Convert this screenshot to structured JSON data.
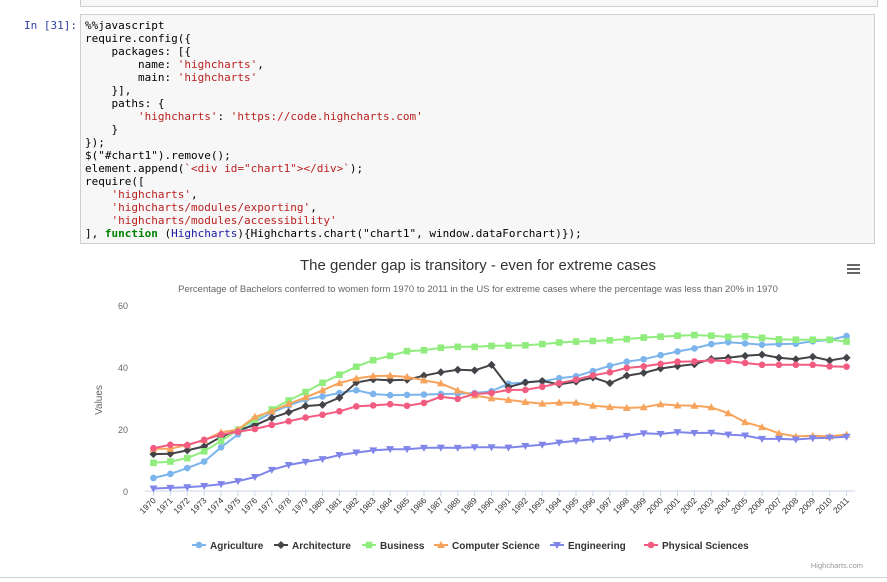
{
  "cell": {
    "prompt": "In [31]:",
    "code_lines": [
      "%%javascript",
      "require.config({",
      "    packages: [{",
      "        name: 'highcharts',",
      "        main: 'highcharts'",
      "    }],",
      "    paths: {",
      "        'highcharts': 'https://code.highcharts.com'",
      "    }",
      "});",
      "$(\"#chart1\").remove();",
      "element.append(`<div id=\"chart1\"></div>`);",
      "require([",
      "    'highcharts',",
      "    'highcharts/modules/exporting',",
      "    'highcharts/modules/accessibility'",
      "], function (Highcharts){Highcharts.chart(\"chart1\", window.dataForchart)});"
    ]
  },
  "chart_data": {
    "type": "line",
    "title": "The gender gap is transitory - even for extreme cases",
    "subtitle": "Percentage of Bachelors conferred to women form 1970 to 2011 in the US for extreme cases where the percentage was less than 20% in 1970",
    "xlabel": "",
    "ylabel": "Values",
    "ylim": [
      0,
      60
    ],
    "yticks": [
      0,
      20,
      40,
      60
    ],
    "grid": false,
    "legend_position": "bottom",
    "credits": "Highcharts.com",
    "x": [
      1970,
      1971,
      1972,
      1973,
      1974,
      1975,
      1976,
      1977,
      1978,
      1979,
      1980,
      1981,
      1982,
      1983,
      1984,
      1985,
      1986,
      1987,
      1988,
      1989,
      1990,
      1991,
      1992,
      1993,
      1994,
      1995,
      1996,
      1997,
      1998,
      1999,
      2000,
      2001,
      2002,
      2003,
      2004,
      2005,
      2006,
      2007,
      2008,
      2009,
      2010,
      2011
    ],
    "series": [
      {
        "name": "Agriculture",
        "color": "#7cb5ec",
        "marker": "circle",
        "values": [
          4.2,
          5.5,
          7.4,
          9.5,
          14.1,
          18.3,
          22.3,
          25.3,
          27.6,
          29.5,
          30.5,
          31.6,
          32.5,
          31.3,
          30.9,
          31.0,
          31.1,
          31.3,
          31.4,
          31.6,
          32.2,
          34.6,
          35.1,
          35.4,
          36.4,
          37.0,
          38.7,
          40.4,
          41.7,
          42.5,
          43.8,
          45.0,
          46.0,
          47.4,
          48.0,
          47.6,
          47.2,
          47.4,
          47.5,
          48.3,
          48.7,
          50.0
        ]
      },
      {
        "name": "Architecture",
        "color": "#434348",
        "marker": "diamond",
        "values": [
          11.9,
          12.0,
          13.1,
          14.4,
          17.5,
          19.7,
          21.2,
          23.6,
          25.4,
          27.4,
          27.8,
          30.1,
          35.0,
          36.0,
          35.7,
          35.9,
          37.2,
          38.3,
          39.1,
          38.9,
          40.7,
          33.5,
          35.0,
          35.5,
          34.4,
          35.3,
          36.6,
          34.8,
          37.2,
          38.1,
          39.5,
          40.3,
          40.9,
          42.6,
          43.0,
          43.6,
          44.0,
          43.0,
          42.5,
          43.3,
          42.1,
          43.0
        ]
      },
      {
        "name": "Business",
        "color": "#90ed7d",
        "marker": "square",
        "values": [
          9.1,
          9.5,
          10.6,
          12.8,
          16.2,
          19.7,
          23.0,
          26.3,
          29.2,
          31.9,
          34.9,
          37.5,
          40.1,
          42.2,
          43.6,
          45.1,
          45.4,
          46.2,
          46.5,
          46.5,
          46.8,
          46.9,
          47.0,
          47.4,
          47.9,
          48.2,
          48.4,
          48.6,
          49.0,
          49.5,
          49.8,
          50.1,
          50.3,
          50.1,
          49.7,
          49.9,
          49.4,
          48.9,
          48.8,
          48.8,
          48.8,
          48.2
        ]
      },
      {
        "name": "Computer Science",
        "color": "#f7a35c",
        "marker": "triangle",
        "values": [
          13.6,
          13.6,
          14.9,
          16.4,
          18.9,
          19.8,
          23.9,
          25.7,
          28.1,
          30.2,
          32.5,
          34.8,
          36.3,
          37.1,
          37.2,
          36.8,
          35.7,
          34.7,
          32.4,
          30.8,
          29.9,
          29.4,
          28.7,
          28.2,
          28.5,
          28.5,
          27.5,
          27.1,
          26.8,
          27.0,
          28.0,
          27.6,
          27.5,
          27.0,
          25.1,
          22.2,
          20.6,
          18.6,
          17.6,
          17.8,
          17.6,
          18.2
        ]
      },
      {
        "name": "Engineering",
        "color": "#8085e9",
        "marker": "triangle-down",
        "values": [
          0.8,
          1.0,
          1.2,
          1.6,
          2.2,
          3.2,
          4.5,
          6.8,
          8.4,
          9.4,
          10.3,
          11.6,
          12.4,
          13.1,
          13.5,
          13.5,
          13.9,
          14.0,
          13.9,
          14.1,
          14.1,
          14.0,
          14.5,
          14.9,
          15.6,
          16.2,
          16.7,
          17.0,
          17.8,
          18.6,
          18.4,
          19.0,
          18.7,
          18.8,
          18.2,
          17.9,
          16.8,
          16.8,
          16.6,
          17.0,
          17.2,
          17.5
        ]
      },
      {
        "name": "Physical Sciences",
        "color": "#f15c80",
        "marker": "circle",
        "values": [
          13.8,
          14.9,
          14.8,
          16.5,
          18.2,
          19.1,
          20.0,
          21.3,
          22.5,
          23.7,
          24.6,
          25.7,
          27.3,
          27.6,
          28.0,
          27.5,
          28.4,
          30.4,
          29.7,
          31.3,
          31.6,
          32.6,
          32.6,
          33.6,
          34.8,
          35.9,
          37.3,
          38.3,
          39.7,
          40.2,
          41.0,
          41.7,
          41.8,
          42.1,
          41.9,
          41.3,
          40.7,
          40.7,
          40.7,
          40.7,
          40.2,
          40.1
        ]
      }
    ]
  }
}
